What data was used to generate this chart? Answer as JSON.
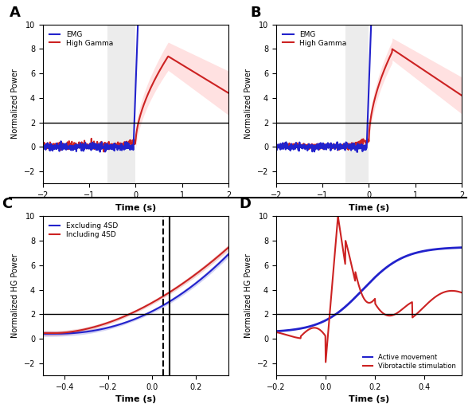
{
  "panel_A": {
    "xlim": [
      -2,
      2
    ],
    "ylim": [
      -3,
      10
    ],
    "yticks": [
      -2,
      0,
      2,
      4,
      6,
      8,
      10
    ],
    "xticks": [
      -2,
      -1,
      0,
      1,
      2
    ],
    "hline_y": 2,
    "gray_rect_x0": -0.6,
    "gray_rect_x1": 0.0,
    "emg_color": "#2222cc",
    "hg_color": "#cc2222",
    "hg_fill_color": "#ffaaaa",
    "emg_fill_color": "#aaaaff",
    "title": "A",
    "ylabel": "Normalized Power",
    "xlabel": "Time (s)"
  },
  "panel_B": {
    "xlim": [
      -2,
      2
    ],
    "ylim": [
      -3,
      10
    ],
    "yticks": [
      -2,
      0,
      2,
      4,
      6,
      8,
      10
    ],
    "xticks": [
      -2,
      -1,
      0,
      1,
      2
    ],
    "hline_y": 2,
    "gray_rect_x0": -0.5,
    "gray_rect_x1": 0.0,
    "emg_color": "#2222cc",
    "hg_color": "#cc2222",
    "hg_fill_color": "#ffaaaa",
    "emg_fill_color": "#aaaaff",
    "title": "B",
    "ylabel": "Normalized Power",
    "xlabel": "Time (s)"
  },
  "panel_C": {
    "xlim": [
      -0.5,
      0.35
    ],
    "ylim": [
      -3,
      10
    ],
    "yticks": [
      -2,
      0,
      2,
      4,
      6,
      8,
      10
    ],
    "xticks": [
      -0.4,
      -0.2,
      0.0,
      0.2
    ],
    "hline_y": 2,
    "vline_solid": 0.08,
    "vline_dashed": 0.05,
    "excl_color": "#2222cc",
    "incl_color": "#cc2222",
    "title": "C",
    "ylabel": "Normalized HG Power",
    "xlabel": "Time (s)"
  },
  "panel_D": {
    "xlim": [
      -0.2,
      0.55
    ],
    "ylim": [
      -3,
      10
    ],
    "yticks": [
      -2,
      0,
      2,
      4,
      6,
      8,
      10
    ],
    "xticks": [
      -0.2,
      0.0,
      0.2,
      0.4
    ],
    "hline_y": 2,
    "active_color": "#2222cc",
    "vibro_color": "#cc2222",
    "title": "D",
    "ylabel": "Normalized HG Power",
    "xlabel": "Time (s)"
  },
  "bg_color": "#ffffff"
}
